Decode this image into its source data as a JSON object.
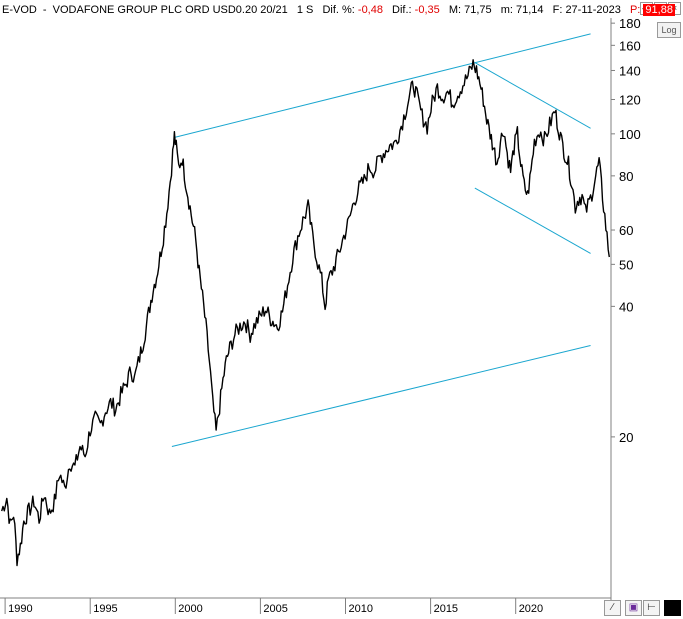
{
  "header": {
    "symbol": "E-VOD",
    "name": "VODAFONE GROUP PLC ORD USD0.20 20/21",
    "period": "1 S",
    "dif_pct_label": "Dif. %:",
    "dif_pct_value": "-0,48",
    "dif_label": "Dif.:",
    "dif_value": "-0,35",
    "max_label": "M:",
    "max_value": "71,75",
    "min_label": "m:",
    "min_value": "71,14",
    "date_label": "F:",
    "date_value": "27-11-2023",
    "p_label": "P:",
    "p_value": "91,88"
  },
  "controls": {
    "log_label": "Log",
    "close_icon": "close-icon",
    "maximize_icon": "maximize-icon",
    "minimize_icon": "minimize-icon",
    "save_icon": "save-icon",
    "pin_icon": "pin-icon",
    "color_icon": "color-swatch-icon",
    "scroll_icon": "scroll-icon"
  },
  "colors": {
    "price": "#000000",
    "trendline": "#1aa6cf",
    "axis": "#808080",
    "accent_negative": "#e00000"
  },
  "chart_data": {
    "type": "line",
    "scale": "log",
    "ylim": [
      8.5,
      185
    ],
    "xlim": [
      1989.7,
      2025.6
    ],
    "y_ticks": [
      20,
      40,
      50,
      60,
      80,
      100,
      120,
      140,
      160,
      180
    ],
    "x_ticks": [
      "1990",
      "1995",
      "2000",
      "2005",
      "2010",
      "2015",
      "2020"
    ],
    "grid": false,
    "series": [
      {
        "values": [
          [
            1989.8,
            13.5
          ],
          [
            1990.1,
            14.5
          ],
          [
            1990.3,
            12.5
          ],
          [
            1990.5,
            13.3
          ],
          [
            1990.7,
            10.5
          ],
          [
            1990.9,
            11.2
          ],
          [
            1991.1,
            12.8
          ],
          [
            1991.4,
            13.5
          ],
          [
            1991.7,
            14.2
          ],
          [
            1992.0,
            12.9
          ],
          [
            1992.3,
            14.8
          ],
          [
            1992.6,
            13.3
          ],
          [
            1992.9,
            14.2
          ],
          [
            1993.2,
            16.5
          ],
          [
            1993.5,
            15.2
          ],
          [
            1993.8,
            17.5
          ],
          [
            1994.1,
            17.0
          ],
          [
            1994.4,
            19.0
          ],
          [
            1994.7,
            18.1
          ],
          [
            1995.0,
            20.8
          ],
          [
            1995.3,
            22.0
          ],
          [
            1995.6,
            21.3
          ],
          [
            1995.9,
            23.0
          ],
          [
            1996.2,
            24.0
          ],
          [
            1996.5,
            23.2
          ],
          [
            1996.8,
            25.0
          ],
          [
            1997.1,
            26.5
          ],
          [
            1997.4,
            28.5
          ],
          [
            1997.6,
            27.2
          ],
          [
            1997.9,
            30.5
          ],
          [
            1998.1,
            33.0
          ],
          [
            1998.3,
            36.0
          ],
          [
            1998.5,
            40.0
          ],
          [
            1998.7,
            44.0
          ],
          [
            1998.9,
            47.0
          ],
          [
            1999.1,
            52.0
          ],
          [
            1999.3,
            58.0
          ],
          [
            1999.5,
            66.0
          ],
          [
            1999.7,
            78.0
          ],
          [
            1999.85,
            90.0
          ],
          [
            1999.95,
            99.0
          ],
          [
            2000.05,
            93.0
          ],
          [
            2000.2,
            84.0
          ],
          [
            2000.4,
            88.0
          ],
          [
            2000.6,
            78.0
          ],
          [
            2000.8,
            70.0
          ],
          [
            2001.0,
            63.0
          ],
          [
            2001.2,
            57.0
          ],
          [
            2001.4,
            48.0
          ],
          [
            2001.6,
            42.0
          ],
          [
            2001.8,
            36.0
          ],
          [
            2002.0,
            30.0
          ],
          [
            2002.2,
            24.0
          ],
          [
            2002.4,
            20.5
          ],
          [
            2002.6,
            23.5
          ],
          [
            2002.8,
            27.0
          ],
          [
            2003.0,
            30.0
          ],
          [
            2003.2,
            32.0
          ],
          [
            2003.5,
            34.5
          ],
          [
            2003.8,
            36.0
          ],
          [
            2004.1,
            37.0
          ],
          [
            2004.4,
            34.5
          ],
          [
            2004.7,
            36.5
          ],
          [
            2005.0,
            38.0
          ],
          [
            2005.3,
            39.5
          ],
          [
            2005.6,
            37.5
          ],
          [
            2006.0,
            36.0
          ],
          [
            2006.3,
            39.0
          ],
          [
            2006.6,
            45.0
          ],
          [
            2006.9,
            52.0
          ],
          [
            2007.2,
            58.0
          ],
          [
            2007.5,
            63.0
          ],
          [
            2007.8,
            68.0
          ],
          [
            2008.0,
            60.0
          ],
          [
            2008.3,
            52.0
          ],
          [
            2008.6,
            46.0
          ],
          [
            2008.8,
            40.0
          ],
          [
            2009.0,
            46.0
          ],
          [
            2009.3,
            49.0
          ],
          [
            2009.6,
            53.0
          ],
          [
            2009.9,
            58.0
          ],
          [
            2010.2,
            63.0
          ],
          [
            2010.5,
            70.0
          ],
          [
            2010.8,
            75.0
          ],
          [
            2011.1,
            78.0
          ],
          [
            2011.4,
            84.0
          ],
          [
            2011.7,
            82.0
          ],
          [
            2012.0,
            88.0
          ],
          [
            2012.3,
            91.0
          ],
          [
            2012.6,
            94.0
          ],
          [
            2012.9,
            95.0
          ],
          [
            2013.2,
            102.0
          ],
          [
            2013.5,
            112.0
          ],
          [
            2013.8,
            124.0
          ],
          [
            2014.0,
            130.0
          ],
          [
            2014.2,
            122.0
          ],
          [
            2014.5,
            110.0
          ],
          [
            2014.8,
            104.0
          ],
          [
            2015.1,
            118.0
          ],
          [
            2015.4,
            128.0
          ],
          [
            2015.7,
            122.0
          ],
          [
            2016.0,
            125.0
          ],
          [
            2016.3,
            118.0
          ],
          [
            2016.6,
            124.0
          ],
          [
            2016.9,
            130.0
          ],
          [
            2017.2,
            136.0
          ],
          [
            2017.5,
            145.0
          ],
          [
            2017.7,
            140.0
          ],
          [
            2017.9,
            131.0
          ],
          [
            2018.1,
            120.0
          ],
          [
            2018.3,
            108.0
          ],
          [
            2018.5,
            100.0
          ],
          [
            2018.7,
            93.0
          ],
          [
            2018.9,
            86.0
          ],
          [
            2019.1,
            96.0
          ],
          [
            2019.3,
            103.0
          ],
          [
            2019.5,
            90.0
          ],
          [
            2019.7,
            82.0
          ],
          [
            2019.9,
            93.0
          ],
          [
            2020.1,
            100.0
          ],
          [
            2020.3,
            85.0
          ],
          [
            2020.5,
            76.0
          ],
          [
            2020.7,
            72.0
          ],
          [
            2020.9,
            82.0
          ],
          [
            2021.1,
            96.0
          ],
          [
            2021.4,
            102.0
          ],
          [
            2021.7,
            97.0
          ],
          [
            2022.0,
            105.0
          ],
          [
            2022.3,
            113.0
          ],
          [
            2022.5,
            104.0
          ],
          [
            2022.7,
            96.0
          ],
          [
            2022.9,
            90.0
          ],
          [
            2023.1,
            85.0
          ],
          [
            2023.3,
            77.0
          ],
          [
            2023.5,
            68.0
          ],
          [
            2023.7,
            71.0
          ],
          [
            2023.9,
            72.0
          ],
          [
            2024.1,
            66.0
          ],
          [
            2024.4,
            71.0
          ],
          [
            2024.7,
            80.0
          ],
          [
            2024.9,
            86.0
          ],
          [
            2025.1,
            72.0
          ],
          [
            2025.3,
            61.0
          ],
          [
            2025.5,
            52.0
          ]
        ]
      }
    ],
    "trendlines": [
      {
        "from": [
          1999.9,
          98.0
        ],
        "to": [
          2024.4,
          170.0
        ]
      },
      {
        "from": [
          1999.8,
          19.0
        ],
        "to": [
          2024.4,
          32.5
        ]
      },
      {
        "from": [
          2017.6,
          146.0
        ],
        "to": [
          2024.4,
          103.0
        ]
      },
      {
        "from": [
          2017.6,
          75.0
        ],
        "to": [
          2024.4,
          53.0
        ]
      }
    ]
  }
}
